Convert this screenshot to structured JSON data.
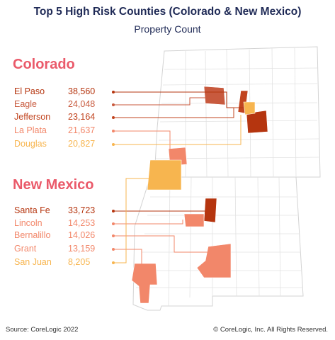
{
  "title": "Top 5 High Risk Counties (Colorado & New Mexico)",
  "subtitle": "Property Count",
  "colorado": {
    "heading": "Colorado",
    "counties": [
      {
        "name": "El Paso",
        "value": "38,560",
        "color": "#b5350f"
      },
      {
        "name": "Eagle",
        "value": "24,048",
        "color": "#c85a3e"
      },
      {
        "name": "Jefferson",
        "value": "23,164",
        "color": "#c1441f"
      },
      {
        "name": "La Plata",
        "value": "21,637",
        "color": "#f2876a"
      },
      {
        "name": "Douglas",
        "value": "20,827",
        "color": "#f7b54f"
      }
    ]
  },
  "new_mexico": {
    "heading": "New Mexico",
    "counties": [
      {
        "name": "Santa Fe",
        "value": "33,723",
        "color": "#b5350f"
      },
      {
        "name": "Lincoln",
        "value": "14,253",
        "color": "#f2876a"
      },
      {
        "name": "Bernalillo",
        "value": "14,026",
        "color": "#f2876a"
      },
      {
        "name": "Grant",
        "value": "13,159",
        "color": "#f2876a"
      },
      {
        "name": "San Juan",
        "value": "8,205",
        "color": "#f7b54f"
      }
    ]
  },
  "colors": {
    "title": "#1f2a56",
    "state_heading": "#ea5a6a",
    "county_border": "#d6d6d6"
  },
  "footer": {
    "source": "Source: CoreLogic 2022",
    "copyright": "© CoreLogic, Inc. All Rights Reserved."
  }
}
